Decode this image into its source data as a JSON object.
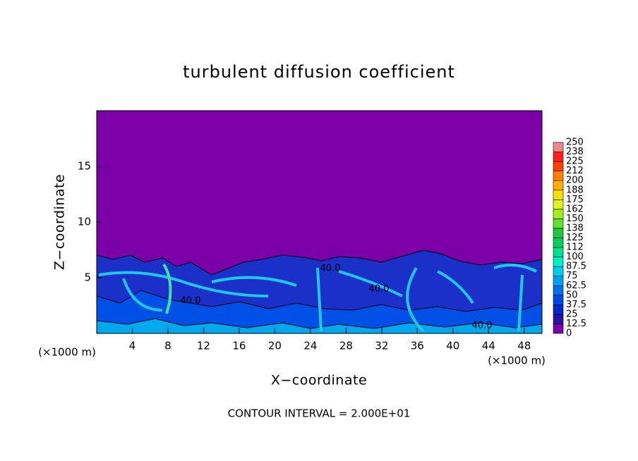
{
  "chart_data": {
    "type": "contour",
    "title": "turbulent diffusion coefficient",
    "xlabel": "X−coordinate",
    "ylabel": "Z−coordinate",
    "x_unit": "(×1000 m)",
    "y_unit": "(×1000 m)",
    "xlim": [
      0,
      50
    ],
    "ylim": [
      0,
      20
    ],
    "xticks": [
      4,
      8,
      12,
      16,
      20,
      24,
      28,
      32,
      36,
      40,
      44,
      48
    ],
    "yticks": [
      5,
      10,
      15
    ],
    "contour_labels": [
      "40.0",
      "40.0",
      "40.0",
      "40.0"
    ],
    "note": "CONTOUR INTERVAL = 2.000E+01",
    "colorbar": {
      "levels": [
        0,
        {
          "value": 12.5,
          "label": "12.5"
        },
        25,
        {
          "value": 37.5,
          "label": "37.5"
        },
        50,
        {
          "value": 62.5,
          "label": "62.5"
        },
        75,
        {
          "value": 87.5,
          "label": "87.5"
        },
        100,
        {
          "value": 112.5,
          "label": "112"
        },
        125,
        {
          "value": 137.5,
          "label": "138"
        },
        150,
        {
          "value": 162.5,
          "label": "162"
        },
        175,
        {
          "value": 187.5,
          "label": "188"
        },
        200,
        {
          "value": 212.5,
          "label": "212"
        },
        225,
        {
          "value": 237.5,
          "label": "238"
        },
        250
      ],
      "colors": [
        "#7b00a8",
        "#2a10a8",
        "#0028c8",
        "#0048e0",
        "#0070f0",
        "#00a0f0",
        "#00ccec",
        "#00f0c8",
        "#00e090",
        "#00d060",
        "#20c840",
        "#60e030",
        "#a0f020",
        "#e0f020",
        "#ffe000",
        "#ffb000",
        "#ff8000",
        "#ff4000",
        "#ff2020",
        "#f08888"
      ]
    }
  }
}
